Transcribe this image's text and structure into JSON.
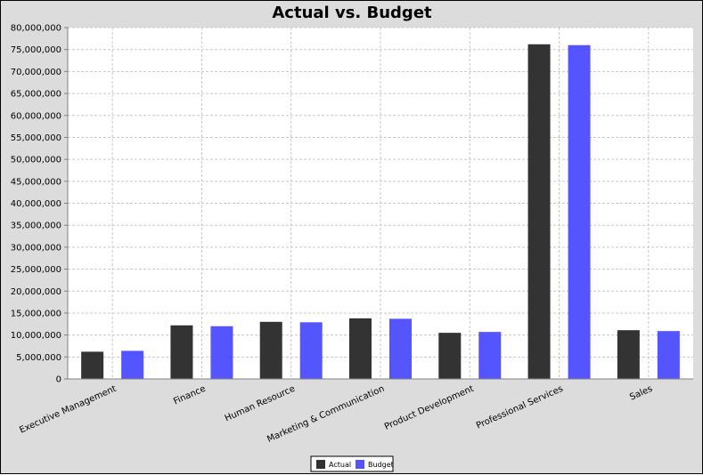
{
  "chart_data": {
    "type": "bar",
    "title": "Actual vs. Budget",
    "xlabel": "",
    "ylabel": "",
    "categories": [
      "Executive Management",
      "Finance",
      "Human Resource",
      "Marketing & Communication",
      "Product Development",
      "Professional Services",
      "Sales"
    ],
    "series": [
      {
        "name": "Actual",
        "values": [
          6200000,
          12200000,
          13000000,
          13800000,
          10500000,
          76200000,
          11100000
        ]
      },
      {
        "name": "Budget",
        "values": [
          6400000,
          12000000,
          12900000,
          13700000,
          10700000,
          76000000,
          10900000
        ]
      }
    ],
    "ylim": [
      0,
      80000000
    ],
    "yticks": [
      {
        "value": 0,
        "label": "0"
      },
      {
        "value": 5000000,
        "label": "5,000,000"
      },
      {
        "value": 10000000,
        "label": "10,000,000"
      },
      {
        "value": 15000000,
        "label": "15,000,000"
      },
      {
        "value": 20000000,
        "label": "20,000,000"
      },
      {
        "value": 25000000,
        "label": "25,000,000"
      },
      {
        "value": 30000000,
        "label": "30,000,000"
      },
      {
        "value": 35000000,
        "label": "35,000,000"
      },
      {
        "value": 40000000,
        "label": "40,000,000"
      },
      {
        "value": 45000000,
        "label": "45,000,000"
      },
      {
        "value": 50000000,
        "label": "50,000,000"
      },
      {
        "value": 55000000,
        "label": "55,000,000"
      },
      {
        "value": 60000000,
        "label": "60,000,000"
      },
      {
        "value": 65000000,
        "label": "65,000,000"
      },
      {
        "value": 70000000,
        "label": "70,000,000"
      },
      {
        "value": 75000000,
        "label": "75,000,000"
      },
      {
        "value": 80000000,
        "label": "80,000,000"
      }
    ],
    "grid": true,
    "legend_position": "bottom",
    "colors": {
      "Actual": "#333333",
      "Budget": "#5555ff"
    },
    "background": "#dcdcdc",
    "plot_background": "#ffffff"
  }
}
